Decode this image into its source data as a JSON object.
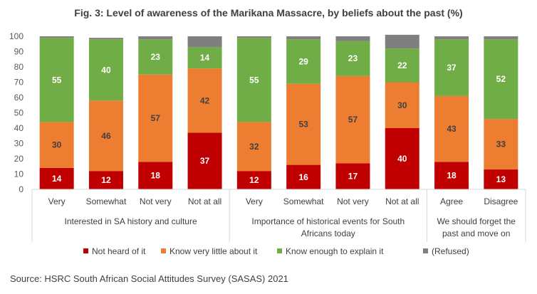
{
  "chart_data": {
    "type": "bar",
    "stacked": true,
    "title": "Fig. 3: Level of awareness of the Marikana Massacre, by beliefs about the past (%)",
    "source": "Source: HSRC South African Social Attitudes Survey (SASAS) 2021",
    "ylim": [
      0,
      100
    ],
    "yticks": [
      0,
      10,
      20,
      30,
      40,
      50,
      60,
      70,
      80,
      90,
      100
    ],
    "grid": false,
    "legend_position": "bottom",
    "categories": [
      "Very",
      "Somewhat",
      "Not very",
      "Not at all",
      "Very",
      "Somewhat",
      "Not very",
      "Not at all",
      "Agree",
      "Disagree"
    ],
    "groups": [
      {
        "label": [
          "Interested in SA history and culture"
        ],
        "span": [
          0,
          3
        ]
      },
      {
        "label": [
          "Importance of historical events for South",
          "Africans today"
        ],
        "span": [
          4,
          7
        ]
      },
      {
        "label": [
          "We should forget the",
          "past and move on"
        ],
        "span": [
          8,
          9
        ]
      }
    ],
    "series": [
      {
        "name": "Not heard of it",
        "color": "#c00000",
        "label_color": "#ffffff",
        "values": [
          14,
          12,
          18,
          37,
          12,
          16,
          17,
          40,
          18,
          13
        ]
      },
      {
        "name": "Know very little about it",
        "color": "#ed7d31",
        "label_color": "#404040",
        "values": [
          30,
          46,
          57,
          42,
          32,
          53,
          57,
          30,
          43,
          33
        ]
      },
      {
        "name": "Know enough to explain it",
        "color": "#70ad47",
        "label_color": "#ffffff",
        "values": [
          55,
          40,
          23,
          14,
          55,
          29,
          23,
          22,
          37,
          52
        ]
      },
      {
        "name": "(Refused)",
        "color": "#7f7f7f",
        "label_color": "#ffffff",
        "values": [
          1,
          1,
          2,
          7,
          1,
          2,
          3,
          9,
          2,
          2
        ],
        "show_labels": false
      }
    ]
  }
}
